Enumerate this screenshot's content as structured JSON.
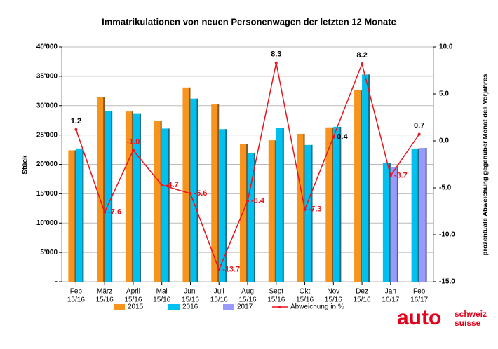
{
  "chart_data": {
    "type": "bar_line",
    "title": "Immatrikulationen von neuen Personenwagen der letzten 12 Monate",
    "y_label": "Stück",
    "y2_label": "prozentuale Abweichung gegenüber Monat des Vorjahres",
    "categories": [
      [
        "Feb",
        "15/16"
      ],
      [
        "März",
        "15/16"
      ],
      [
        "April",
        "15/16"
      ],
      [
        "Mai",
        "15/16"
      ],
      [
        "Juni",
        "15/16"
      ],
      [
        "Juli",
        "15/16"
      ],
      [
        "Aug",
        "15/16"
      ],
      [
        "Sept",
        "15/16"
      ],
      [
        "Okt",
        "15/16"
      ],
      [
        "Nov",
        "15/16"
      ],
      [
        "Dez",
        "15/16"
      ],
      [
        "Jan",
        "16/17"
      ],
      [
        "Feb",
        "16/17"
      ]
    ],
    "series": [
      {
        "name": "2015",
        "color": "#f7941d",
        "values": [
          22400,
          31500,
          29000,
          27400,
          33100,
          30200,
          23400,
          24100,
          25200,
          26300,
          32700,
          null,
          null
        ]
      },
      {
        "name": "2016",
        "color": "#00c0f0",
        "values": [
          22700,
          29100,
          28700,
          26100,
          31200,
          26000,
          21900,
          26200,
          23300,
          26400,
          35300,
          20200,
          22700
        ]
      },
      {
        "name": "2017",
        "color": "#9999ff",
        "values": [
          null,
          null,
          null,
          null,
          null,
          null,
          null,
          null,
          null,
          null,
          null,
          19500,
          22800
        ]
      },
      {
        "name": "Abweichung in %",
        "color": "#e8141c",
        "axis": "y2",
        "type": "line",
        "values": [
          1.2,
          -7.6,
          -1.0,
          -4.7,
          -5.6,
          -13.7,
          -6.4,
          8.3,
          -7.3,
          0.4,
          8.2,
          -3.7,
          0.7
        ],
        "value_labels": [
          "1.2",
          "-7.6",
          "-1.0",
          "-4.7",
          "-5.6",
          "-13.7",
          "-6.4",
          "8.3",
          "-7.3",
          "0.4",
          "8.2",
          "-3.7",
          "0.7"
        ]
      }
    ],
    "ylim": [
      0,
      40000
    ],
    "yticks": [
      {
        "value": 0,
        "label": "-"
      },
      {
        "value": 5000,
        "label": "5'000"
      },
      {
        "value": 10000,
        "label": "10'000"
      },
      {
        "value": 15000,
        "label": "15'000"
      },
      {
        "value": 20000,
        "label": "20'000"
      },
      {
        "value": 25000,
        "label": "25'000"
      },
      {
        "value": 30000,
        "label": "30'000"
      },
      {
        "value": 35000,
        "label": "35'000"
      },
      {
        "value": 40000,
        "label": "40'000"
      }
    ],
    "y2lim": [
      -15,
      10
    ],
    "y2ticks": [
      {
        "value": -15,
        "label": "-15.0"
      },
      {
        "value": -10,
        "label": "-10.0"
      },
      {
        "value": -5,
        "label": "-5.0"
      },
      {
        "value": 0,
        "label": "0.0"
      },
      {
        "value": 5,
        "label": "5.0"
      },
      {
        "value": 10,
        "label": "10.0"
      }
    ],
    "grid": true
  },
  "logo": {
    "brand": "auto",
    "line1": "schweiz",
    "line2": "suisse"
  }
}
